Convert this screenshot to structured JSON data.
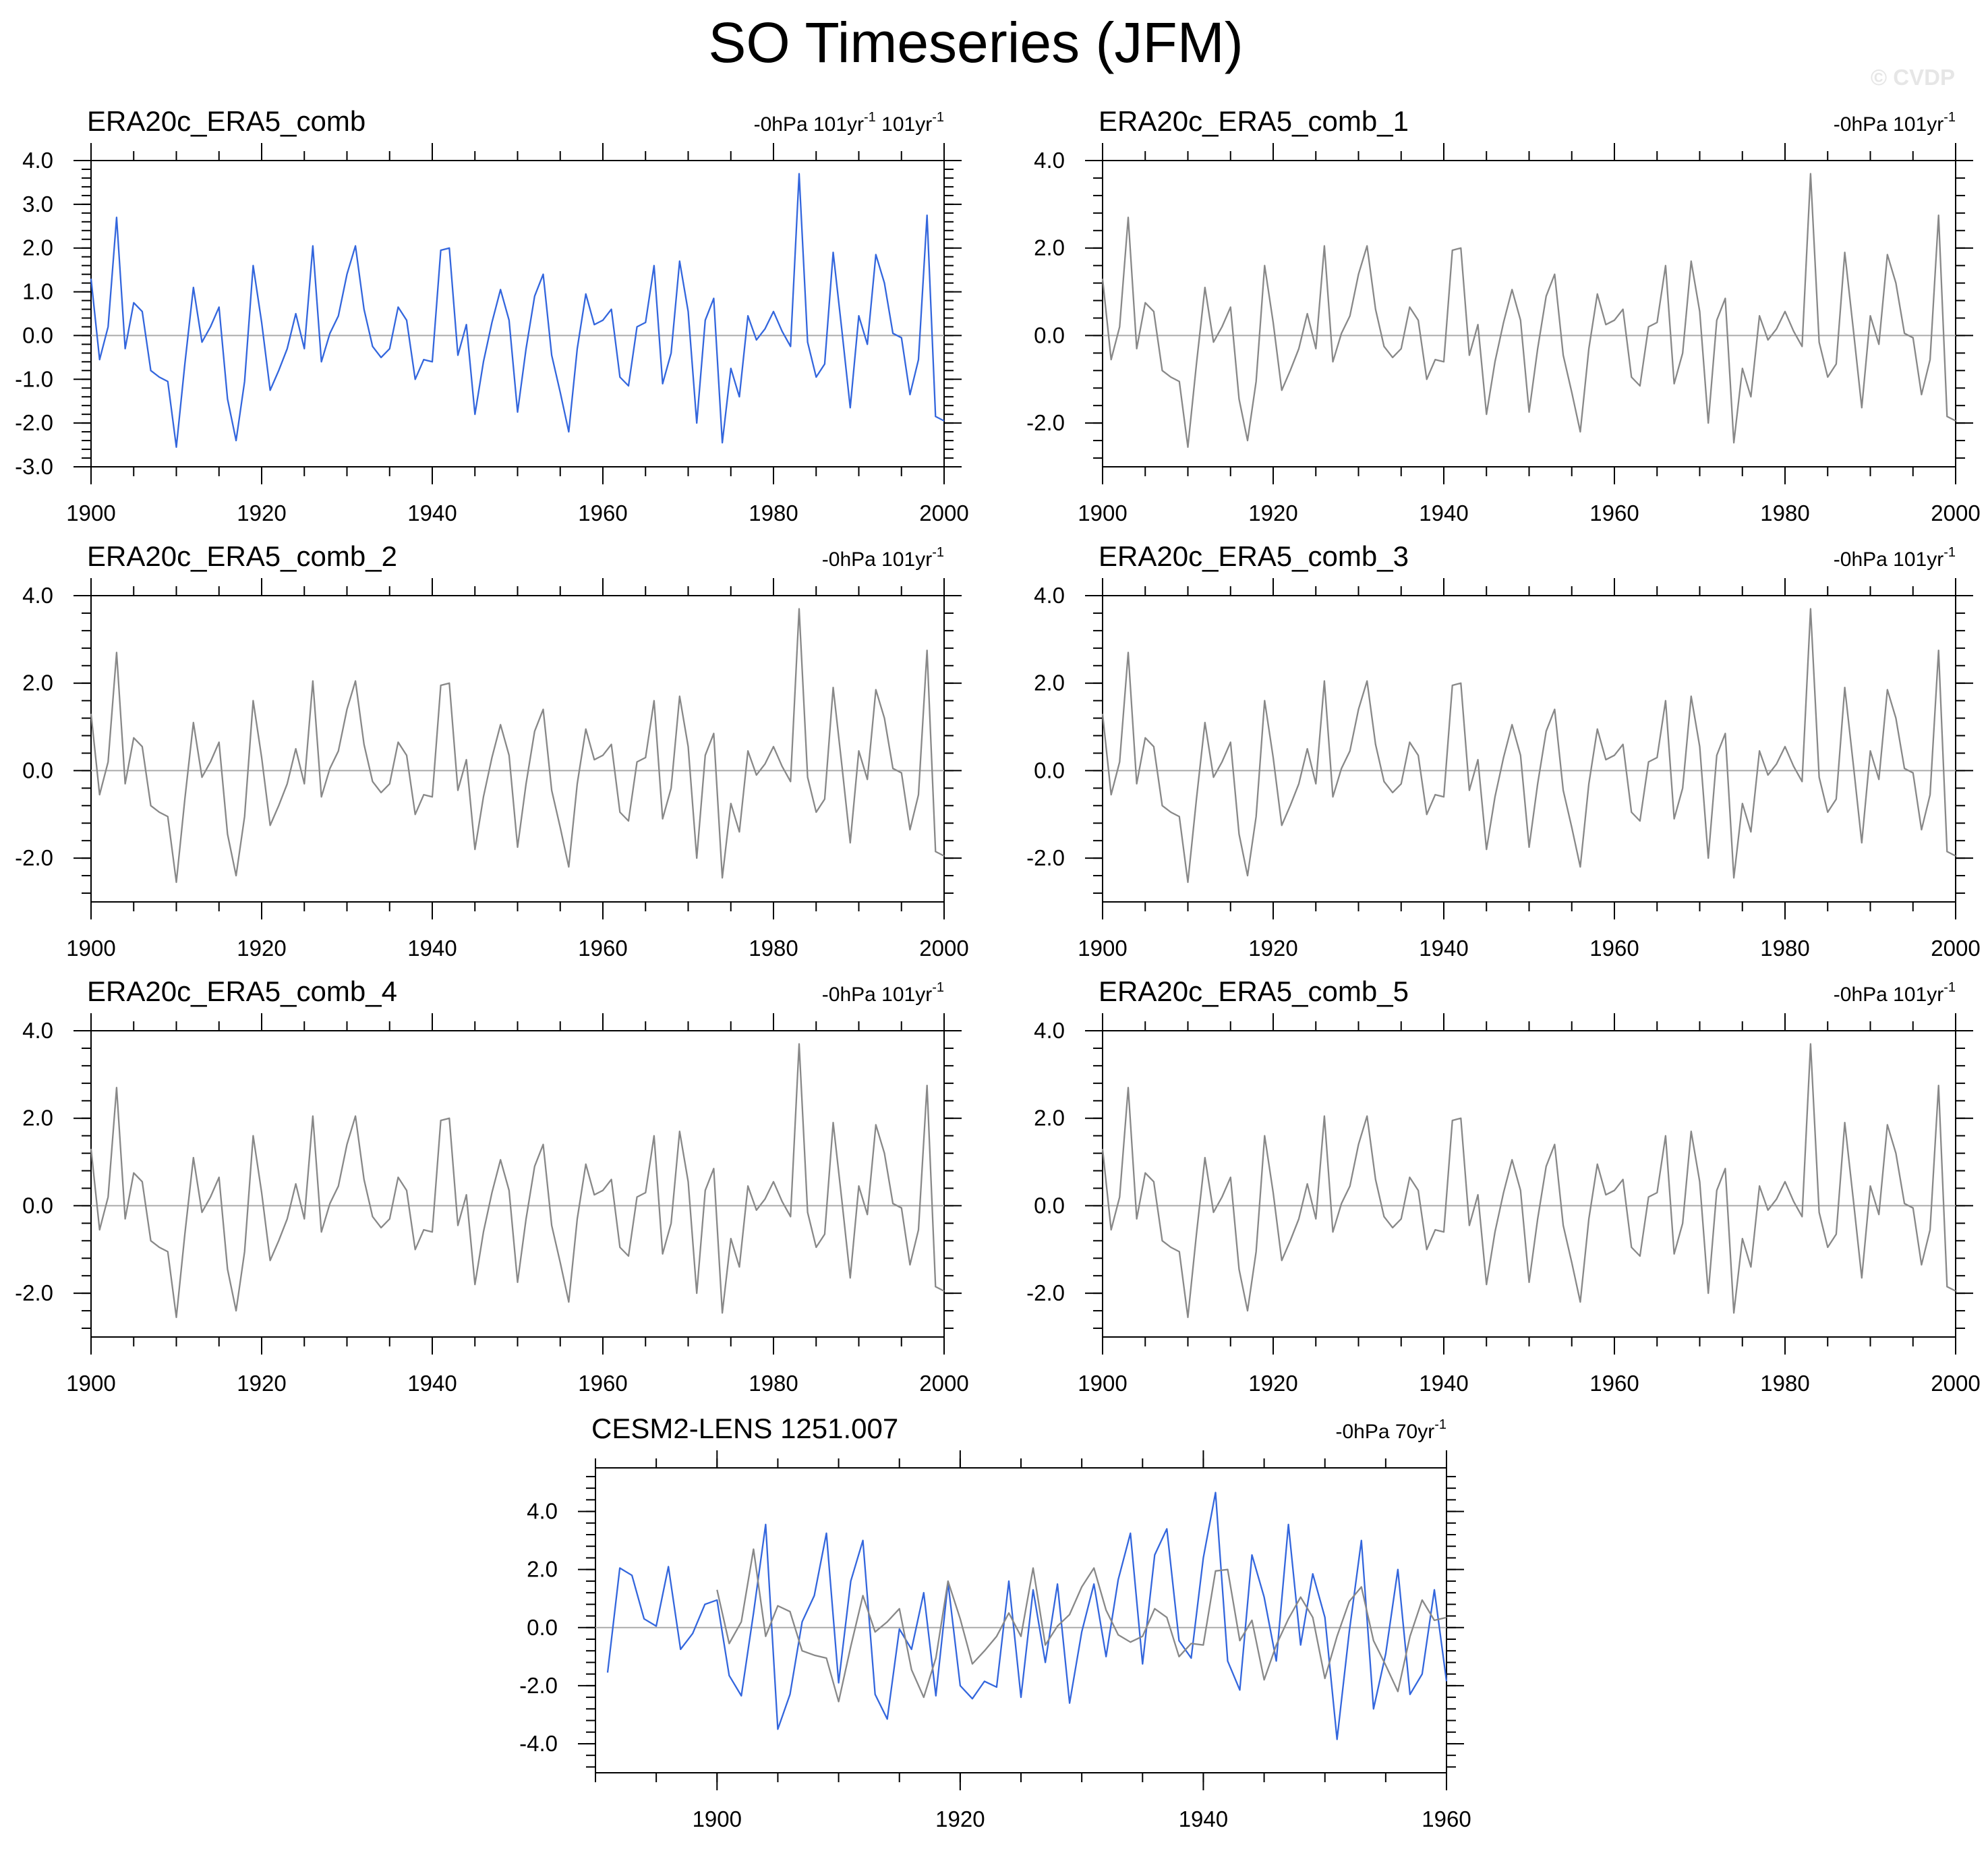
{
  "title": "SO Timeseries (JFM)",
  "watermark": "© CVDP",
  "colors": {
    "primary": "#3366dd",
    "gray": "#888888"
  },
  "chart_data": [
    {
      "type": "line",
      "title": "ERA20c_ERA5_comb",
      "unit_label": "-0hPa 101yr",
      "unit_sup": "-1",
      "unit_label2": " 101yr",
      "unit_sup2": "-1",
      "x_start": 1900,
      "xlim": [
        1900,
        2000
      ],
      "ylim": [
        -3.0,
        4.0
      ],
      "xticks": [
        1900,
        1920,
        1940,
        1960,
        1980,
        2000
      ],
      "yticks": [
        4.0,
        3.0,
        2.0,
        1.0,
        0.0,
        -1.0,
        -2.0,
        -3.0
      ],
      "series": [
        {
          "color": "#3366dd",
          "values": [
            1.3,
            -0.55,
            0.2,
            2.7,
            -0.3,
            0.75,
            0.55,
            -0.8,
            -0.95,
            -1.05,
            -2.55,
            -0.65,
            1.1,
            -0.15,
            0.2,
            0.65,
            -1.45,
            -2.4,
            -1.05,
            1.6,
            0.3,
            -1.25,
            -0.8,
            -0.3,
            0.5,
            -0.3,
            2.05,
            -0.6,
            0.05,
            0.45,
            1.4,
            2.05,
            0.6,
            -0.25,
            -0.5,
            -0.3,
            0.65,
            0.35,
            -1.0,
            -0.55,
            -0.6,
            1.95,
            2.0,
            -0.45,
            0.25,
            -1.8,
            -0.6,
            0.3,
            1.05,
            0.35,
            -1.75,
            -0.3,
            0.9,
            1.4,
            -0.45,
            -1.3,
            -2.2,
            -0.3,
            0.95,
            0.25,
            0.35,
            0.6,
            -0.95,
            -1.15,
            0.2,
            0.3,
            1.6,
            -1.1,
            -0.4,
            1.7,
            0.55,
            -2.0,
            0.35,
            0.85,
            -2.45,
            -0.75,
            -1.4,
            0.45,
            -0.1,
            0.15,
            0.55,
            0.1,
            -0.25,
            3.7,
            -0.15,
            -0.95,
            -0.65,
            1.9,
            0.15,
            -1.65,
            0.45,
            -0.2,
            1.85,
            1.2,
            0.05,
            -0.05,
            -1.35,
            -0.55,
            2.75,
            -1.85,
            -1.95
          ]
        }
      ]
    },
    {
      "type": "line",
      "title": "ERA20c_ERA5_comb_1",
      "unit_label": "-0hPa 101yr",
      "unit_sup": "-1",
      "x_start": 1900,
      "xlim": [
        1900,
        2000
      ],
      "ylim": [
        -3.0,
        4.0
      ],
      "xticks": [
        1900,
        1920,
        1940,
        1960,
        1980,
        2000
      ],
      "yticks": [
        4.0,
        2.0,
        0.0,
        -2.0
      ],
      "series": [
        {
          "color": "#888888",
          "values": [
            1.3,
            -0.55,
            0.2,
            2.7,
            -0.3,
            0.75,
            0.55,
            -0.8,
            -0.95,
            -1.05,
            -2.55,
            -0.65,
            1.1,
            -0.15,
            0.2,
            0.65,
            -1.45,
            -2.4,
            -1.05,
            1.6,
            0.3,
            -1.25,
            -0.8,
            -0.3,
            0.5,
            -0.3,
            2.05,
            -0.6,
            0.05,
            0.45,
            1.4,
            2.05,
            0.6,
            -0.25,
            -0.5,
            -0.3,
            0.65,
            0.35,
            -1.0,
            -0.55,
            -0.6,
            1.95,
            2.0,
            -0.45,
            0.25,
            -1.8,
            -0.6,
            0.3,
            1.05,
            0.35,
            -1.75,
            -0.3,
            0.9,
            1.4,
            -0.45,
            -1.3,
            -2.2,
            -0.3,
            0.95,
            0.25,
            0.35,
            0.6,
            -0.95,
            -1.15,
            0.2,
            0.3,
            1.6,
            -1.1,
            -0.4,
            1.7,
            0.55,
            -2.0,
            0.35,
            0.85,
            -2.45,
            -0.75,
            -1.4,
            0.45,
            -0.1,
            0.15,
            0.55,
            0.1,
            -0.25,
            3.7,
            -0.15,
            -0.95,
            -0.65,
            1.9,
            0.15,
            -1.65,
            0.45,
            -0.2,
            1.85,
            1.2,
            0.05,
            -0.05,
            -1.35,
            -0.55,
            2.75,
            -1.85,
            -1.95
          ]
        }
      ]
    },
    {
      "type": "line",
      "title": "ERA20c_ERA5_comb_2",
      "unit_label": "-0hPa 101yr",
      "unit_sup": "-1",
      "x_start": 1900,
      "xlim": [
        1900,
        2000
      ],
      "ylim": [
        -3.0,
        4.0
      ],
      "xticks": [
        1900,
        1920,
        1940,
        1960,
        1980,
        2000
      ],
      "yticks": [
        4.0,
        2.0,
        0.0,
        -2.0
      ],
      "series": [
        {
          "color": "#888888",
          "values": [
            1.3,
            -0.55,
            0.2,
            2.7,
            -0.3,
            0.75,
            0.55,
            -0.8,
            -0.95,
            -1.05,
            -2.55,
            -0.65,
            1.1,
            -0.15,
            0.2,
            0.65,
            -1.45,
            -2.4,
            -1.05,
            1.6,
            0.3,
            -1.25,
            -0.8,
            -0.3,
            0.5,
            -0.3,
            2.05,
            -0.6,
            0.05,
            0.45,
            1.4,
            2.05,
            0.6,
            -0.25,
            -0.5,
            -0.3,
            0.65,
            0.35,
            -1.0,
            -0.55,
            -0.6,
            1.95,
            2.0,
            -0.45,
            0.25,
            -1.8,
            -0.6,
            0.3,
            1.05,
            0.35,
            -1.75,
            -0.3,
            0.9,
            1.4,
            -0.45,
            -1.3,
            -2.2,
            -0.3,
            0.95,
            0.25,
            0.35,
            0.6,
            -0.95,
            -1.15,
            0.2,
            0.3,
            1.6,
            -1.1,
            -0.4,
            1.7,
            0.55,
            -2.0,
            0.35,
            0.85,
            -2.45,
            -0.75,
            -1.4,
            0.45,
            -0.1,
            0.15,
            0.55,
            0.1,
            -0.25,
            3.7,
            -0.15,
            -0.95,
            -0.65,
            1.9,
            0.15,
            -1.65,
            0.45,
            -0.2,
            1.85,
            1.2,
            0.05,
            -0.05,
            -1.35,
            -0.55,
            2.75,
            -1.85,
            -1.95
          ]
        }
      ]
    },
    {
      "type": "line",
      "title": "ERA20c_ERA5_comb_3",
      "unit_label": "-0hPa 101yr",
      "unit_sup": "-1",
      "x_start": 1900,
      "xlim": [
        1900,
        2000
      ],
      "ylim": [
        -3.0,
        4.0
      ],
      "xticks": [
        1900,
        1920,
        1940,
        1960,
        1980,
        2000
      ],
      "yticks": [
        4.0,
        2.0,
        0.0,
        -2.0
      ],
      "series": [
        {
          "color": "#888888",
          "values": [
            1.3,
            -0.55,
            0.2,
            2.7,
            -0.3,
            0.75,
            0.55,
            -0.8,
            -0.95,
            -1.05,
            -2.55,
            -0.65,
            1.1,
            -0.15,
            0.2,
            0.65,
            -1.45,
            -2.4,
            -1.05,
            1.6,
            0.3,
            -1.25,
            -0.8,
            -0.3,
            0.5,
            -0.3,
            2.05,
            -0.6,
            0.05,
            0.45,
            1.4,
            2.05,
            0.6,
            -0.25,
            -0.5,
            -0.3,
            0.65,
            0.35,
            -1.0,
            -0.55,
            -0.6,
            1.95,
            2.0,
            -0.45,
            0.25,
            -1.8,
            -0.6,
            0.3,
            1.05,
            0.35,
            -1.75,
            -0.3,
            0.9,
            1.4,
            -0.45,
            -1.3,
            -2.2,
            -0.3,
            0.95,
            0.25,
            0.35,
            0.6,
            -0.95,
            -1.15,
            0.2,
            0.3,
            1.6,
            -1.1,
            -0.4,
            1.7,
            0.55,
            -2.0,
            0.35,
            0.85,
            -2.45,
            -0.75,
            -1.4,
            0.45,
            -0.1,
            0.15,
            0.55,
            0.1,
            -0.25,
            3.7,
            -0.15,
            -0.95,
            -0.65,
            1.9,
            0.15,
            -1.65,
            0.45,
            -0.2,
            1.85,
            1.2,
            0.05,
            -0.05,
            -1.35,
            -0.55,
            2.75,
            -1.85,
            -1.95
          ]
        }
      ]
    },
    {
      "type": "line",
      "title": "ERA20c_ERA5_comb_4",
      "unit_label": "-0hPa 101yr",
      "unit_sup": "-1",
      "x_start": 1900,
      "xlim": [
        1900,
        2000
      ],
      "ylim": [
        -3.0,
        4.0
      ],
      "xticks": [
        1900,
        1920,
        1940,
        1960,
        1980,
        2000
      ],
      "yticks": [
        4.0,
        2.0,
        0.0,
        -2.0
      ],
      "series": [
        {
          "color": "#888888",
          "values": [
            1.3,
            -0.55,
            0.2,
            2.7,
            -0.3,
            0.75,
            0.55,
            -0.8,
            -0.95,
            -1.05,
            -2.55,
            -0.65,
            1.1,
            -0.15,
            0.2,
            0.65,
            -1.45,
            -2.4,
            -1.05,
            1.6,
            0.3,
            -1.25,
            -0.8,
            -0.3,
            0.5,
            -0.3,
            2.05,
            -0.6,
            0.05,
            0.45,
            1.4,
            2.05,
            0.6,
            -0.25,
            -0.5,
            -0.3,
            0.65,
            0.35,
            -1.0,
            -0.55,
            -0.6,
            1.95,
            2.0,
            -0.45,
            0.25,
            -1.8,
            -0.6,
            0.3,
            1.05,
            0.35,
            -1.75,
            -0.3,
            0.9,
            1.4,
            -0.45,
            -1.3,
            -2.2,
            -0.3,
            0.95,
            0.25,
            0.35,
            0.6,
            -0.95,
            -1.15,
            0.2,
            0.3,
            1.6,
            -1.1,
            -0.4,
            1.7,
            0.55,
            -2.0,
            0.35,
            0.85,
            -2.45,
            -0.75,
            -1.4,
            0.45,
            -0.1,
            0.15,
            0.55,
            0.1,
            -0.25,
            3.7,
            -0.15,
            -0.95,
            -0.65,
            1.9,
            0.15,
            -1.65,
            0.45,
            -0.2,
            1.85,
            1.2,
            0.05,
            -0.05,
            -1.35,
            -0.55,
            2.75,
            -1.85,
            -1.95
          ]
        }
      ]
    },
    {
      "type": "line",
      "title": "ERA20c_ERA5_comb_5",
      "unit_label": "-0hPa 101yr",
      "unit_sup": "-1",
      "x_start": 1900,
      "xlim": [
        1900,
        2000
      ],
      "ylim": [
        -3.0,
        4.0
      ],
      "xticks": [
        1900,
        1920,
        1940,
        1960,
        1980,
        2000
      ],
      "yticks": [
        4.0,
        2.0,
        0.0,
        -2.0
      ],
      "series": [
        {
          "color": "#888888",
          "values": [
            1.3,
            -0.55,
            0.2,
            2.7,
            -0.3,
            0.75,
            0.55,
            -0.8,
            -0.95,
            -1.05,
            -2.55,
            -0.65,
            1.1,
            -0.15,
            0.2,
            0.65,
            -1.45,
            -2.4,
            -1.05,
            1.6,
            0.3,
            -1.25,
            -0.8,
            -0.3,
            0.5,
            -0.3,
            2.05,
            -0.6,
            0.05,
            0.45,
            1.4,
            2.05,
            0.6,
            -0.25,
            -0.5,
            -0.3,
            0.65,
            0.35,
            -1.0,
            -0.55,
            -0.6,
            1.95,
            2.0,
            -0.45,
            0.25,
            -1.8,
            -0.6,
            0.3,
            1.05,
            0.35,
            -1.75,
            -0.3,
            0.9,
            1.4,
            -0.45,
            -1.3,
            -2.2,
            -0.3,
            0.95,
            0.25,
            0.35,
            0.6,
            -0.95,
            -1.15,
            0.2,
            0.3,
            1.6,
            -1.1,
            -0.4,
            1.7,
            0.55,
            -2.0,
            0.35,
            0.85,
            -2.45,
            -0.75,
            -1.4,
            0.45,
            -0.1,
            0.15,
            0.55,
            0.1,
            -0.25,
            3.7,
            -0.15,
            -0.95,
            -0.65,
            1.9,
            0.15,
            -1.65,
            0.45,
            -0.2,
            1.85,
            1.2,
            0.05,
            -0.05,
            -1.35,
            -0.55,
            2.75,
            -1.85,
            -1.95
          ]
        }
      ]
    },
    {
      "type": "line",
      "title": "CESM2-LENS 1251.007",
      "unit_label": "-0hPa 70yr",
      "unit_sup": "-1",
      "xlim": [
        1890,
        1960
      ],
      "ylim": [
        -5.0,
        5.5
      ],
      "xticks": [
        1900,
        1920,
        1940,
        1960
      ],
      "yticks": [
        4.0,
        2.0,
        0.0,
        -2.0,
        -4.0
      ],
      "series": [
        {
          "color": "#3366dd",
          "x_start": 1891,
          "values": [
            -1.55,
            2.05,
            1.8,
            0.3,
            0.05,
            2.1,
            -0.75,
            -0.2,
            0.8,
            0.95,
            -1.65,
            -2.35,
            0.5,
            3.55,
            -3.5,
            -2.3,
            0.2,
            1.1,
            3.25,
            -1.9,
            1.6,
            3.0,
            -2.3,
            -3.15,
            -0.05,
            -0.75,
            1.2,
            -2.35,
            1.55,
            -2.0,
            -2.45,
            -1.85,
            -2.05,
            1.6,
            -2.4,
            1.3,
            -1.2,
            1.5,
            -2.6,
            -0.15,
            1.5,
            -1.0,
            1.65,
            3.25,
            -1.25,
            2.5,
            3.4,
            -0.45,
            -1.05,
            2.4,
            4.65,
            -1.15,
            -2.15,
            2.5,
            1.05,
            -1.15,
            3.55,
            -0.6,
            1.85,
            0.35,
            -3.85,
            -0.15,
            3.0,
            -2.8,
            -0.9,
            2.0,
            -2.3,
            -1.6,
            1.3,
            -1.85
          ]
        },
        {
          "color": "#888888",
          "x_start": 1900,
          "values": [
            1.3,
            -0.55,
            0.2,
            2.7,
            -0.3,
            0.75,
            0.55,
            -0.8,
            -0.95,
            -1.05,
            -2.55,
            -0.65,
            1.1,
            -0.15,
            0.2,
            0.65,
            -1.45,
            -2.4,
            -1.05,
            1.6,
            0.3,
            -1.25,
            -0.8,
            -0.3,
            0.5,
            -0.3,
            2.05,
            -0.6,
            0.05,
            0.45,
            1.4,
            2.05,
            0.6,
            -0.25,
            -0.5,
            -0.3,
            0.65,
            0.35,
            -1.0,
            -0.55,
            -0.6,
            1.95,
            2.0,
            -0.45,
            0.25,
            -1.8,
            -0.6,
            0.3,
            1.05,
            0.35,
            -1.75,
            -0.3,
            0.9,
            1.4,
            -0.45,
            -1.3,
            -2.2,
            -0.3,
            0.95,
            0.25,
            0.35
          ]
        }
      ]
    }
  ]
}
